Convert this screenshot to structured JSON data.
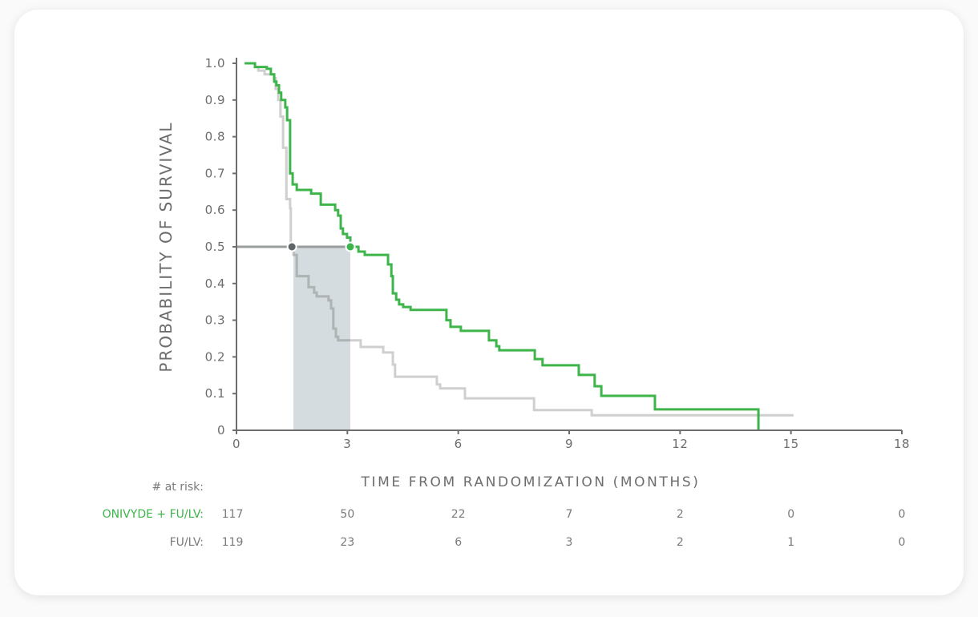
{
  "chart_data": {
    "type": "line",
    "subtype": "kaplan-meier",
    "ylabel": "PROBABILITY OF SURVIVAL",
    "xlabel": "TIME FROM RANDOMIZATION (MONTHS)",
    "xlim": [
      0,
      18
    ],
    "ylim": [
      0,
      1.0
    ],
    "xticks": [
      "0",
      "3",
      "6",
      "9",
      "12",
      "15",
      "18"
    ],
    "xtick_values": [
      0,
      3,
      6,
      9,
      12,
      15,
      18
    ],
    "yticks": [
      "0",
      "0.1",
      "0.2",
      "0.3",
      "0.4",
      "0.5",
      "0.6",
      "0.7",
      "0.8",
      "0.9",
      "1.0"
    ],
    "ytick_values": [
      0,
      0.1,
      0.2,
      0.3,
      0.4,
      0.5,
      0.6,
      0.7,
      0.8,
      0.9,
      1.0
    ],
    "grid": false,
    "series": [
      {
        "name": "ONIVYDE + FU/LV",
        "color": "#3db54a",
        "median": 3.1,
        "steps": [
          [
            0.22,
            1.0
          ],
          [
            0.5,
            0.99
          ],
          [
            0.82,
            0.985
          ],
          [
            0.93,
            0.97
          ],
          [
            1.02,
            0.95
          ],
          [
            1.08,
            0.94
          ],
          [
            1.15,
            0.92
          ],
          [
            1.21,
            0.9
          ],
          [
            1.32,
            0.88
          ],
          [
            1.37,
            0.845
          ],
          [
            1.45,
            0.7
          ],
          [
            1.52,
            0.67
          ],
          [
            1.63,
            0.655
          ],
          [
            2.02,
            0.645
          ],
          [
            2.28,
            0.615
          ],
          [
            2.67,
            0.6
          ],
          [
            2.75,
            0.585
          ],
          [
            2.82,
            0.55
          ],
          [
            2.88,
            0.535
          ],
          [
            2.99,
            0.525
          ],
          [
            3.08,
            0.5
          ],
          [
            3.3,
            0.487
          ],
          [
            3.47,
            0.478
          ],
          [
            4.1,
            0.452
          ],
          [
            4.19,
            0.42
          ],
          [
            4.23,
            0.373
          ],
          [
            4.32,
            0.356
          ],
          [
            4.4,
            0.343
          ],
          [
            4.51,
            0.336
          ],
          [
            4.71,
            0.328
          ],
          [
            5.68,
            0.3
          ],
          [
            5.79,
            0.282
          ],
          [
            6.07,
            0.271
          ],
          [
            6.83,
            0.245
          ],
          [
            7.03,
            0.229
          ],
          [
            7.11,
            0.218
          ],
          [
            8.07,
            0.194
          ],
          [
            8.28,
            0.177
          ],
          [
            9.26,
            0.151
          ],
          [
            9.69,
            0.12
          ],
          [
            9.87,
            0.094
          ],
          [
            11.32,
            0.057
          ],
          [
            14.12,
            0
          ]
        ],
        "end": 14.12
      },
      {
        "name": "FU/LV",
        "color": "#cfcfcf",
        "median": 1.5,
        "steps": [
          [
            0.22,
            1.0
          ],
          [
            0.5,
            0.99
          ],
          [
            0.59,
            0.98
          ],
          [
            0.76,
            0.97
          ],
          [
            1.02,
            0.96
          ],
          [
            1.06,
            0.93
          ],
          [
            1.13,
            0.9
          ],
          [
            1.19,
            0.855
          ],
          [
            1.26,
            0.77
          ],
          [
            1.35,
            0.63
          ],
          [
            1.45,
            0.605
          ],
          [
            1.47,
            0.49
          ],
          [
            1.54,
            0.478
          ],
          [
            1.63,
            0.42
          ],
          [
            1.95,
            0.39
          ],
          [
            2.1,
            0.375
          ],
          [
            2.17,
            0.365
          ],
          [
            2.49,
            0.354
          ],
          [
            2.56,
            0.332
          ],
          [
            2.62,
            0.277
          ],
          [
            2.69,
            0.255
          ],
          [
            2.75,
            0.245
          ],
          [
            3.36,
            0.227
          ],
          [
            3.97,
            0.212
          ],
          [
            4.23,
            0.179
          ],
          [
            4.29,
            0.146
          ],
          [
            5.42,
            0.125
          ],
          [
            5.51,
            0.114
          ],
          [
            6.18,
            0.087
          ],
          [
            8.05,
            0.055
          ],
          [
            9.61,
            0.041
          ]
        ],
        "end": 15.07
      }
    ],
    "median_band": [
      1.54,
      3.08
    ],
    "median_level": 0.5,
    "colors": {
      "band": "#d5dcdf",
      "median_line": "#9a9d9e",
      "gray_dot": "#5f6668",
      "axis": "#6d6d6d"
    }
  },
  "risk_table": {
    "header": "# at risk:",
    "rows": [
      {
        "label": "ONIVYDE + FU/LV:",
        "color": "#3db54a",
        "values": [
          "117",
          "50",
          "22",
          "7",
          "2",
          "0",
          "0"
        ]
      },
      {
        "label": "FU/LV:",
        "color": "#7a7a7a",
        "values": [
          "119",
          "23",
          "6",
          "3",
          "2",
          "1",
          "0"
        ]
      }
    ]
  }
}
